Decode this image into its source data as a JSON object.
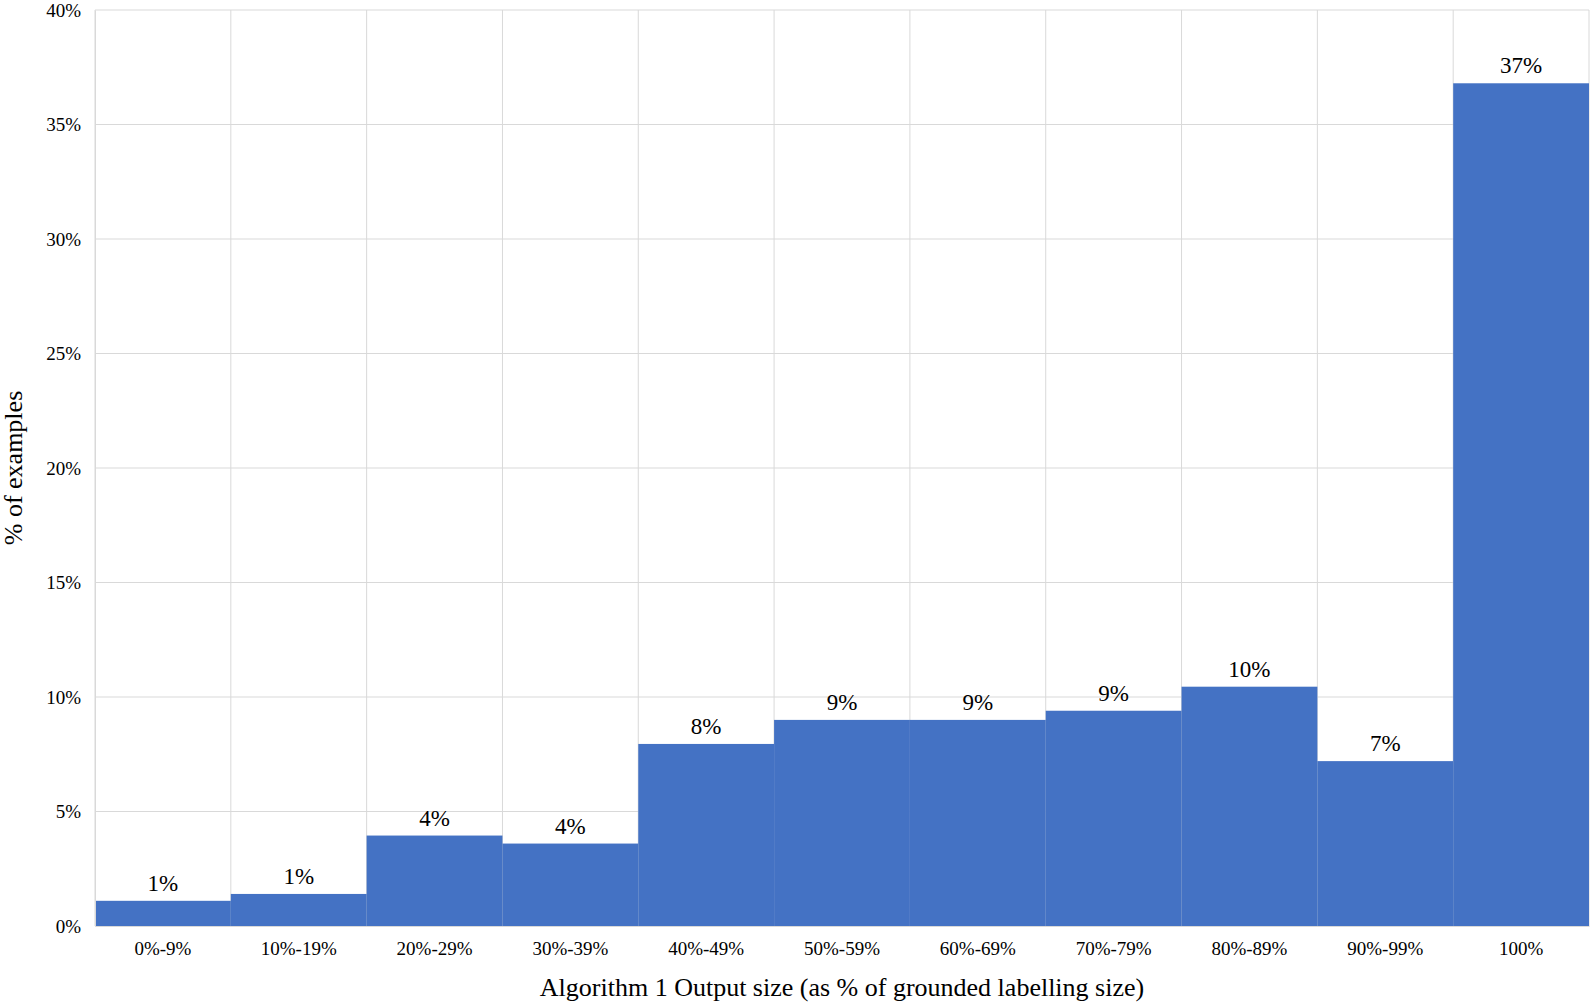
{
  "chart_data": {
    "type": "bar",
    "x_label": "Algorithm 1 Output size (as % of grounded labelling size)",
    "y_label": "% of examples",
    "categories": [
      "0%-9%",
      "10%-19%",
      "20%-29%",
      "30%-39%",
      "40%-49%",
      "50%-59%",
      "60%-69%",
      "70%-79%",
      "80%-89%",
      "90%-99%",
      "100%"
    ],
    "values": [
      1.1,
      1.4,
      3.95,
      3.6,
      7.95,
      9.0,
      9.0,
      9.4,
      10.45,
      7.2,
      36.8
    ],
    "value_labels": [
      "1%",
      "1%",
      "4%",
      "4%",
      "8%",
      "9%",
      "9%",
      "9%",
      "10%",
      "7%",
      "37%"
    ],
    "color": "#4472c4",
    "ylim": [
      0,
      40
    ],
    "yticks": [
      {
        "value": 0,
        "label": "0%"
      },
      {
        "value": 5,
        "label": "5%"
      },
      {
        "value": 10,
        "label": "10%"
      },
      {
        "value": 15,
        "label": "15%"
      },
      {
        "value": 20,
        "label": "20%"
      },
      {
        "value": 25,
        "label": "25%"
      },
      {
        "value": 30,
        "label": "30%"
      },
      {
        "value": 35,
        "label": "35%"
      },
      {
        "value": 40,
        "label": "40%"
      }
    ],
    "grid": true,
    "data_labels": true
  }
}
